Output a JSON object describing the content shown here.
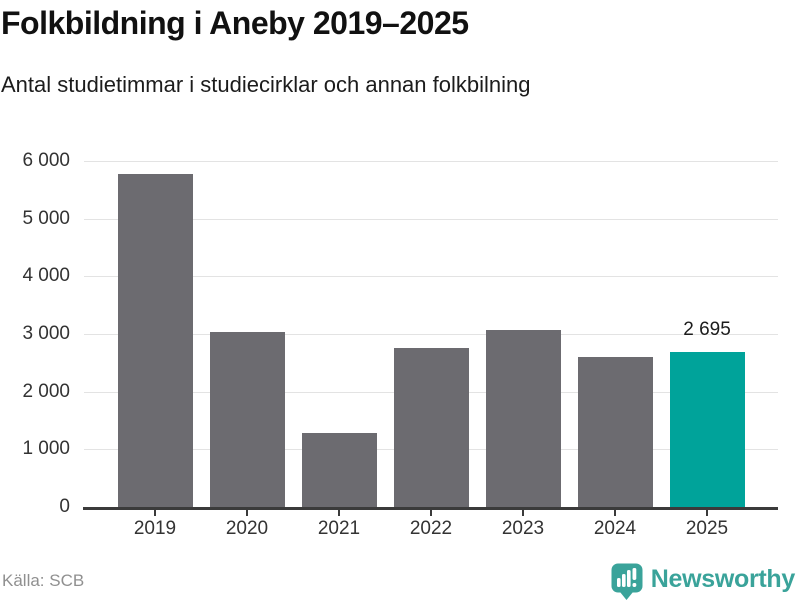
{
  "header": {
    "title": "Folkbildning i Aneby 2019–2025",
    "subtitle": "Antal studietimmar i studiecirklar och annan folkbilning"
  },
  "chart_data": {
    "type": "bar",
    "title": "Folkbildning i Aneby 2019–2025",
    "subtitle": "Antal studietimmar i studiecirklar och annan folkbilning",
    "categories": [
      "2019",
      "2020",
      "2021",
      "2022",
      "2023",
      "2024",
      "2025"
    ],
    "values": [
      5775,
      3030,
      1285,
      2760,
      3070,
      2600,
      2695
    ],
    "ylim": [
      0,
      6000
    ],
    "yticks": [
      {
        "value": 0,
        "label": "0"
      },
      {
        "value": 1000,
        "label": "1 000"
      },
      {
        "value": 2000,
        "label": "2 000"
      },
      {
        "value": 3000,
        "label": "3 000"
      },
      {
        "value": 4000,
        "label": "4 000"
      },
      {
        "value": 5000,
        "label": "5 000"
      },
      {
        "value": 6000,
        "label": "6 000"
      }
    ],
    "grid": "horizontal",
    "legend": "none",
    "bar_color": "#6c6b70",
    "highlight_color": "#00a39a",
    "highlight_index": 6,
    "value_labels": [
      {
        "index": 6,
        "text": "2 695"
      }
    ]
  },
  "footer": {
    "source": "Källa: SCB",
    "brand": "Newsworthy",
    "brand_color": "#3aa39a",
    "logo_icon": "newsworthy-chart-bubble-icon"
  }
}
